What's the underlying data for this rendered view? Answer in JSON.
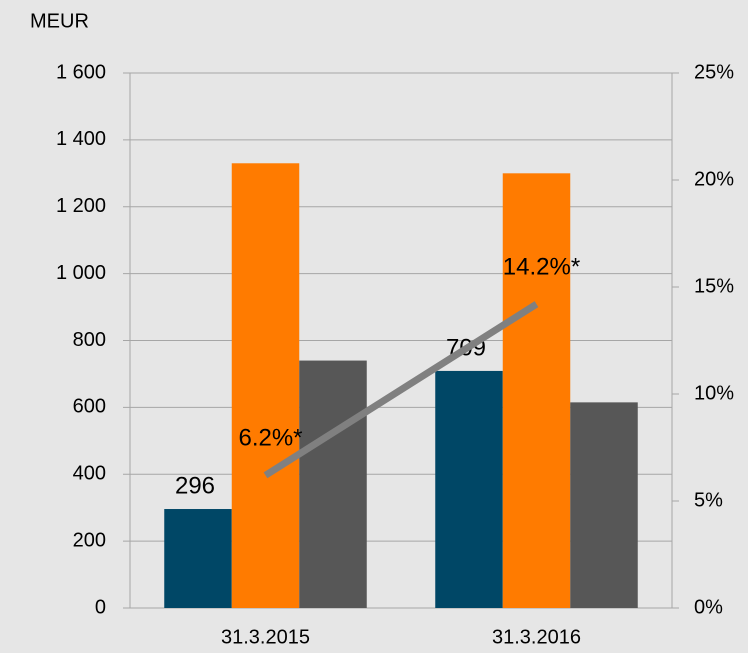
{
  "chart_data": {
    "type": "bar",
    "y_label": "MEUR",
    "categories": [
      "31.3.2015",
      "31.3.2016"
    ],
    "series": [
      {
        "color": "#004766",
        "values": [
          296,
          709
        ],
        "labels": true
      },
      {
        "color": "#ff7b00",
        "values": [
          1330,
          1300
        ]
      },
      {
        "color": "#575757",
        "values": [
          740,
          615
        ]
      },
      {
        "type": "line",
        "axis": "y2",
        "color": "#808080",
        "values": [
          6.2,
          14.2
        ],
        "value_labels": [
          "6.2%*",
          "14.2%*"
        ]
      }
    ],
    "ylim": [
      0,
      1600
    ],
    "yticks": [
      0,
      {
        "value": 200,
        "label": "200"
      },
      {
        "value": 400,
        "label": "400"
      },
      {
        "value": 600,
        "label": "600"
      },
      {
        "value": 800,
        "label": "800"
      },
      {
        "value": 1000,
        "label": "1 000"
      },
      {
        "value": 1200,
        "label": "1 200"
      },
      {
        "value": 1400,
        "label": "1 400"
      },
      {
        "value": 1600,
        "label": "1 600"
      }
    ],
    "y2lim": [
      0,
      25
    ],
    "y2ticks": [
      {
        "value": 0,
        "label": "0%"
      },
      {
        "value": 5,
        "label": "5%"
      },
      {
        "value": 10,
        "label": "10%"
      },
      {
        "value": 15,
        "label": "15%"
      },
      {
        "value": 20,
        "label": "20%"
      },
      {
        "value": 25,
        "label": "25%"
      }
    ],
    "grid": true
  }
}
